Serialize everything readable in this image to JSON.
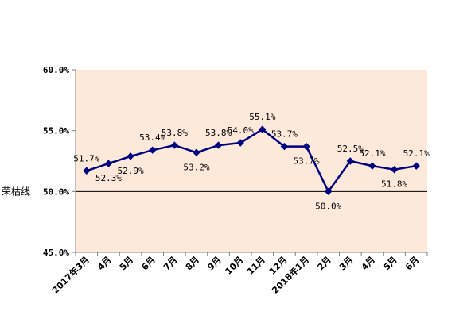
{
  "chart_data": {
    "type": "line",
    "categories": [
      "2017年3月",
      "4月",
      "5月",
      "6月",
      "7月",
      "8月",
      "9月",
      "10月",
      "11月",
      "12月",
      "2018年1月",
      "2月",
      "3月",
      "4月",
      "5月",
      "6月"
    ],
    "series": [
      {
        "values": [
          51.7,
          52.3,
          52.9,
          53.4,
          53.8,
          53.2,
          53.8,
          54.0,
          55.1,
          53.7,
          53.7,
          50.0,
          52.5,
          52.1,
          51.8,
          52.1
        ],
        "labels": [
          "51.7%",
          "52.3%",
          "52.9%",
          "53.4%",
          "53.8%",
          "53.2%",
          "53.8%",
          "54.0%",
          "55.1%",
          "53.7%",
          "53.7%",
          "50.0%",
          "52.5%",
          "52.1%",
          "51.8%",
          "52.1%"
        ],
        "color": "#000080",
        "marker": "diamond"
      }
    ],
    "ylim": [
      45.0,
      60.0
    ],
    "yticks": [
      60.0,
      55.0,
      50.0,
      45.0
    ],
    "ytick_labels": [
      "60.0%",
      "55.0%",
      "50.0%",
      "45.0%"
    ],
    "reference_line": {
      "value": 50.0,
      "label": "荣枯线"
    },
    "plot_background": "#FDE9D9",
    "grid": false,
    "legend": "none"
  }
}
